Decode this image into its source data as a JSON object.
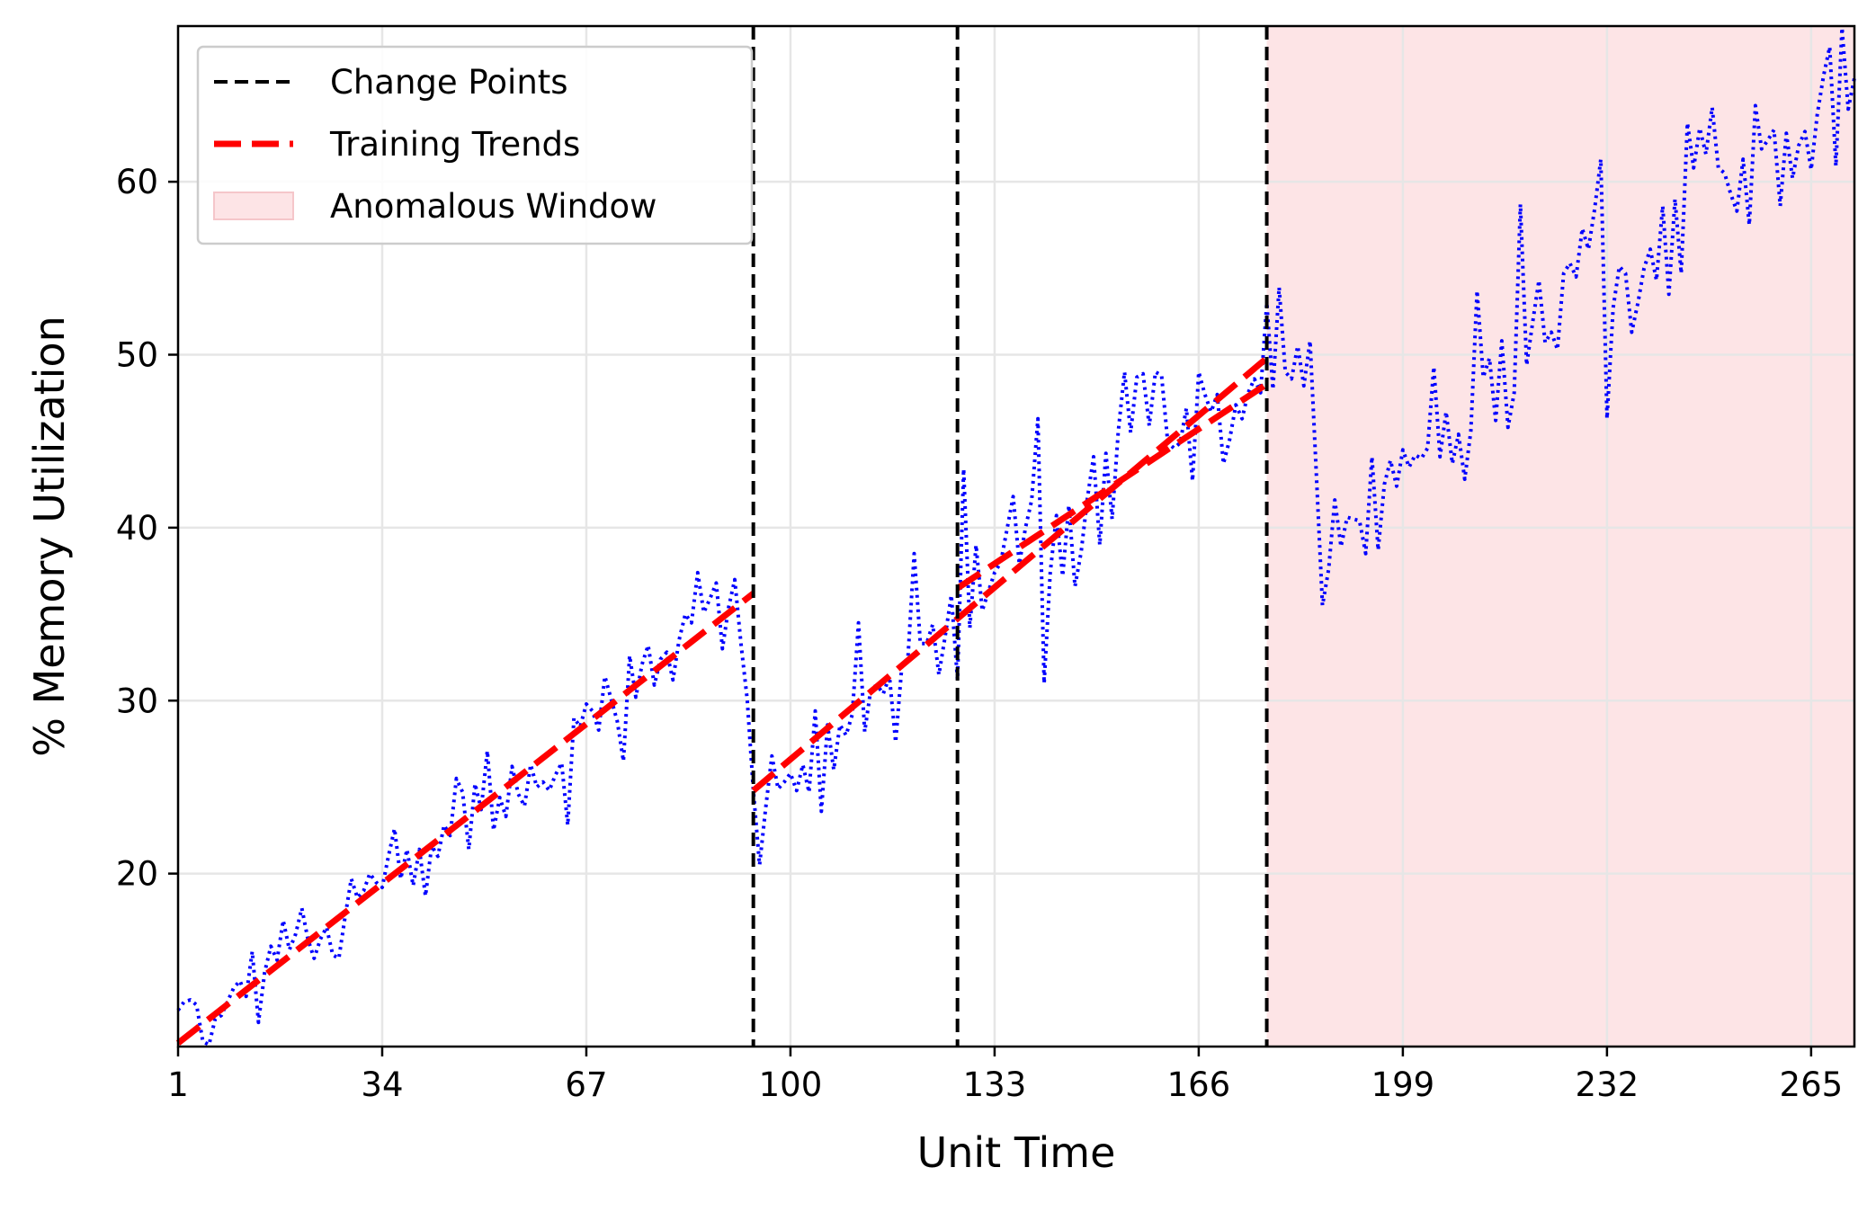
{
  "chart_data": {
    "type": "line",
    "title": "",
    "xlabel": "Unit Time",
    "ylabel": "% Memory Utilization",
    "xlim": [
      1,
      272
    ],
    "ylim": [
      10,
      69
    ],
    "xticks": [
      1,
      34,
      67,
      100,
      133,
      166,
      199,
      232,
      265
    ],
    "yticks": [
      20,
      30,
      40,
      50,
      60
    ],
    "grid": true,
    "legend": {
      "position": "top-left",
      "entries": [
        {
          "label": "Change Points",
          "style": "dashed",
          "color": "#000000"
        },
        {
          "label": "Training Trends",
          "style": "dashed-thick",
          "color": "#ff0000"
        },
        {
          "label": "Anomalous Window",
          "style": "patch",
          "color": "#fde4e6"
        }
      ]
    },
    "change_points": [
      94,
      127,
      177
    ],
    "anomalous_window": [
      177,
      272
    ],
    "colors": {
      "series": "#0000ff",
      "trend": "#ff0000",
      "change_point": "#000000",
      "anomalous_fill": "#fde4e6",
      "grid": "#e6e6e6"
    },
    "series": [
      {
        "style": "dotted",
        "points": [
          [
            1,
            12.1
          ],
          [
            2,
            12.6
          ],
          [
            3,
            12.7
          ],
          [
            4,
            12.4
          ],
          [
            5,
            10.3
          ],
          [
            6,
            10.1
          ],
          [
            7,
            11.6
          ],
          [
            8,
            11.8
          ],
          [
            9,
            12.6
          ],
          [
            10,
            13.4
          ],
          [
            11,
            13.8
          ],
          [
            12,
            12.9
          ],
          [
            13,
            15.5
          ],
          [
            14,
            11.4
          ],
          [
            15,
            14.3
          ],
          [
            16,
            15.8
          ],
          [
            17,
            15.0
          ],
          [
            18,
            17.3
          ],
          [
            19,
            15.6
          ],
          [
            20,
            16.5
          ],
          [
            21,
            18.0
          ],
          [
            22,
            16.2
          ],
          [
            23,
            15.1
          ],
          [
            24,
            16.2
          ],
          [
            25,
            16.9
          ],
          [
            26,
            15.3
          ],
          [
            27,
            15.1
          ],
          [
            28,
            17.5
          ],
          [
            29,
            19.7
          ],
          [
            30,
            18.6
          ],
          [
            31,
            19.0
          ],
          [
            32,
            20.0
          ],
          [
            33,
            19.5
          ],
          [
            34,
            19.2
          ],
          [
            35,
            21.0
          ],
          [
            36,
            22.6
          ],
          [
            37,
            19.7
          ],
          [
            38,
            21.4
          ],
          [
            39,
            19.3
          ],
          [
            40,
            21.4
          ],
          [
            41,
            18.7
          ],
          [
            42,
            21.6
          ],
          [
            43,
            21.0
          ],
          [
            44,
            22.8
          ],
          [
            45,
            22.2
          ],
          [
            46,
            25.5
          ],
          [
            47,
            24.7
          ],
          [
            48,
            21.4
          ],
          [
            49,
            25.2
          ],
          [
            50,
            23.7
          ],
          [
            51,
            27.1
          ],
          [
            52,
            22.5
          ],
          [
            53,
            24.4
          ],
          [
            54,
            23.3
          ],
          [
            55,
            26.2
          ],
          [
            56,
            24.6
          ],
          [
            57,
            23.9
          ],
          [
            58,
            26.3
          ],
          [
            59,
            25.0
          ],
          [
            60,
            25.3
          ],
          [
            61,
            24.8
          ],
          [
            62,
            25.7
          ],
          [
            63,
            26.4
          ],
          [
            64,
            22.8
          ],
          [
            65,
            29.0
          ],
          [
            66,
            28.5
          ],
          [
            67,
            29.8
          ],
          [
            68,
            29.4
          ],
          [
            69,
            28.3
          ],
          [
            70,
            31.4
          ],
          [
            71,
            30.1
          ],
          [
            72,
            28.8
          ],
          [
            73,
            26.5
          ],
          [
            74,
            32.6
          ],
          [
            75,
            30.2
          ],
          [
            76,
            32.1
          ],
          [
            77,
            33.2
          ],
          [
            78,
            30.9
          ],
          [
            79,
            32.4
          ],
          [
            80,
            32.8
          ],
          [
            81,
            31.2
          ],
          [
            82,
            33.5
          ],
          [
            83,
            35.0
          ],
          [
            84,
            34.5
          ],
          [
            85,
            37.4
          ],
          [
            86,
            35.1
          ],
          [
            87,
            35.9
          ],
          [
            88,
            36.8
          ],
          [
            89,
            33.0
          ],
          [
            90,
            35.4
          ],
          [
            91,
            37.0
          ],
          [
            92,
            33.3
          ],
          [
            93,
            30.1
          ],
          [
            94,
            24.8
          ],
          [
            95,
            20.5
          ],
          [
            96,
            23.8
          ],
          [
            97,
            26.8
          ],
          [
            98,
            24.9
          ],
          [
            99,
            25.3
          ],
          [
            100,
            25.8
          ],
          [
            101,
            24.8
          ],
          [
            102,
            26.3
          ],
          [
            103,
            24.7
          ],
          [
            104,
            29.4
          ],
          [
            105,
            23.6
          ],
          [
            106,
            28.6
          ],
          [
            107,
            26.0
          ],
          [
            108,
            28.6
          ],
          [
            109,
            28.0
          ],
          [
            110,
            29.2
          ],
          [
            111,
            34.5
          ],
          [
            112,
            28.2
          ],
          [
            113,
            30.7
          ],
          [
            114,
            30.9
          ],
          [
            115,
            30.4
          ],
          [
            116,
            31.4
          ],
          [
            117,
            27.6
          ],
          [
            118,
            32.0
          ],
          [
            119,
            32.5
          ],
          [
            120,
            38.5
          ],
          [
            121,
            33.3
          ],
          [
            122,
            33.3
          ],
          [
            123,
            34.4
          ],
          [
            124,
            31.5
          ],
          [
            125,
            33.7
          ],
          [
            126,
            36.1
          ],
          [
            127,
            31.2
          ],
          [
            128,
            43.4
          ],
          [
            129,
            34.2
          ],
          [
            130,
            39.0
          ],
          [
            131,
            35.2
          ],
          [
            132,
            36.3
          ],
          [
            133,
            37.4
          ],
          [
            134,
            38.0
          ],
          [
            135,
            39.9
          ],
          [
            136,
            41.8
          ],
          [
            137,
            37.9
          ],
          [
            138,
            40.0
          ],
          [
            139,
            41.6
          ],
          [
            140,
            46.3
          ],
          [
            141,
            31.0
          ],
          [
            142,
            37.4
          ],
          [
            143,
            40.7
          ],
          [
            144,
            37.2
          ],
          [
            145,
            41.3
          ],
          [
            146,
            36.6
          ],
          [
            147,
            38.6
          ],
          [
            148,
            41.7
          ],
          [
            149,
            44.1
          ],
          [
            150,
            39.0
          ],
          [
            151,
            44.3
          ],
          [
            152,
            40.5
          ],
          [
            153,
            45.6
          ],
          [
            154,
            49.0
          ],
          [
            155,
            45.5
          ],
          [
            156,
            48.7
          ],
          [
            157,
            48.9
          ],
          [
            158,
            45.9
          ],
          [
            159,
            49.0
          ],
          [
            160,
            48.8
          ],
          [
            161,
            44.9
          ],
          [
            162,
            44.6
          ],
          [
            163,
            44.9
          ],
          [
            164,
            46.9
          ],
          [
            165,
            42.7
          ],
          [
            166,
            49.0
          ],
          [
            167,
            47.7
          ],
          [
            168,
            46.7
          ],
          [
            169,
            47.7
          ],
          [
            170,
            43.7
          ],
          [
            171,
            45.1
          ],
          [
            172,
            47.1
          ],
          [
            173,
            46.3
          ],
          [
            174,
            47.8
          ],
          [
            175,
            48.6
          ],
          [
            176,
            47.8
          ],
          [
            177,
            53.0
          ],
          [
            178,
            48.0
          ],
          [
            179,
            53.9
          ],
          [
            180,
            49.0
          ],
          [
            181,
            48.6
          ],
          [
            182,
            50.5
          ],
          [
            183,
            48.2
          ],
          [
            184,
            50.8
          ],
          [
            185,
            43.2
          ],
          [
            186,
            35.5
          ],
          [
            187,
            37.6
          ],
          [
            188,
            41.6
          ],
          [
            189,
            38.9
          ],
          [
            190,
            40.6
          ],
          [
            191,
            40.5
          ],
          [
            192,
            40.4
          ],
          [
            193,
            38.5
          ],
          [
            194,
            44.1
          ],
          [
            195,
            38.7
          ],
          [
            196,
            42.5
          ],
          [
            197,
            43.9
          ],
          [
            198,
            42.4
          ],
          [
            199,
            44.5
          ],
          [
            200,
            43.5
          ],
          [
            201,
            44.2
          ],
          [
            202,
            44.0
          ],
          [
            203,
            44.6
          ],
          [
            204,
            49.3
          ],
          [
            205,
            44.1
          ],
          [
            206,
            46.7
          ],
          [
            207,
            43.7
          ],
          [
            208,
            45.4
          ],
          [
            209,
            42.8
          ],
          [
            210,
            45.6
          ],
          [
            211,
            53.7
          ],
          [
            212,
            48.7
          ],
          [
            213,
            49.8
          ],
          [
            214,
            46.2
          ],
          [
            215,
            50.8
          ],
          [
            216,
            45.8
          ],
          [
            217,
            47.8
          ],
          [
            218,
            58.7
          ],
          [
            219,
            49.4
          ],
          [
            220,
            51.9
          ],
          [
            221,
            54.3
          ],
          [
            222,
            50.7
          ],
          [
            223,
            51.3
          ],
          [
            224,
            50.3
          ],
          [
            225,
            54.7
          ],
          [
            226,
            55.3
          ],
          [
            227,
            54.5
          ],
          [
            228,
            57.3
          ],
          [
            229,
            56.1
          ],
          [
            230,
            58.4
          ],
          [
            231,
            61.3
          ],
          [
            232,
            46.3
          ],
          [
            233,
            52.7
          ],
          [
            234,
            55.1
          ],
          [
            235,
            54.7
          ],
          [
            236,
            51.3
          ],
          [
            237,
            53.0
          ],
          [
            238,
            55.0
          ],
          [
            239,
            56.1
          ],
          [
            240,
            54.3
          ],
          [
            241,
            58.6
          ],
          [
            242,
            53.5
          ],
          [
            243,
            59.0
          ],
          [
            244,
            54.7
          ],
          [
            245,
            63.4
          ],
          [
            246,
            60.8
          ],
          [
            247,
            63.1
          ],
          [
            248,
            61.6
          ],
          [
            249,
            64.3
          ],
          [
            250,
            60.8
          ],
          [
            251,
            60.5
          ],
          [
            252,
            59.3
          ],
          [
            253,
            58.3
          ],
          [
            254,
            61.3
          ],
          [
            255,
            57.5
          ],
          [
            256,
            64.4
          ],
          [
            257,
            61.9
          ],
          [
            258,
            62.4
          ],
          [
            259,
            63.0
          ],
          [
            260,
            58.6
          ],
          [
            261,
            62.8
          ],
          [
            262,
            60.2
          ],
          [
            263,
            62.1
          ],
          [
            264,
            62.9
          ],
          [
            265,
            60.7
          ],
          [
            266,
            63.9
          ],
          [
            267,
            66.1
          ],
          [
            268,
            67.8
          ],
          [
            269,
            60.9
          ],
          [
            270,
            68.9
          ],
          [
            271,
            64.2
          ],
          [
            272,
            66.0
          ]
        ]
      }
    ],
    "trends": [
      {
        "x": [
          1,
          94
        ],
        "y": [
          10.2,
          36.2
        ]
      },
      {
        "x": [
          94,
          177
        ],
        "y": [
          24.8,
          49.8
        ]
      },
      {
        "x": [
          127,
          177
        ],
        "y": [
          36.5,
          48.3
        ]
      }
    ]
  }
}
